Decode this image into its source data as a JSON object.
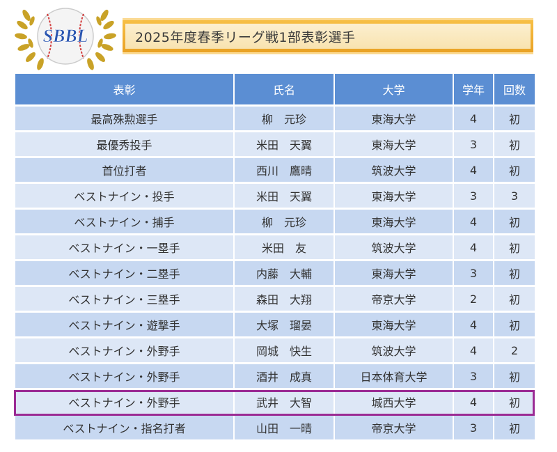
{
  "logo": {
    "text": "SBBL"
  },
  "title": "2025年度春季リーグ戦1部表彰選手",
  "colors": {
    "header": "#5b8ed3",
    "row_odd": "#c7d8f1",
    "row_even": "#dde7f6",
    "highlight": "#9b2b94",
    "title_bar": "#e9a225"
  },
  "table": {
    "headers": [
      "表彰",
      "氏名",
      "大学",
      "学年",
      "回数"
    ],
    "rows": [
      [
        "最高殊勲選手",
        "柳　元珍",
        "東海大学",
        "4",
        "初"
      ],
      [
        "最優秀投手",
        "米田　天翼",
        "東海大学",
        "3",
        "初"
      ],
      [
        "首位打者",
        "西川　鷹晴",
        "筑波大学",
        "4",
        "初"
      ],
      [
        "ベストナイン・投手",
        "米田　天翼",
        "東海大学",
        "3",
        "3"
      ],
      [
        "ベストナイン・捕手",
        "柳　元珍",
        "東海大学",
        "4",
        "初"
      ],
      [
        "ベストナイン・一塁手",
        "米田　友",
        "筑波大学",
        "4",
        "初"
      ],
      [
        "ベストナイン・二塁手",
        "内藤　大輔",
        "東海大学",
        "3",
        "初"
      ],
      [
        "ベストナイン・三塁手",
        "森田　大翔",
        "帝京大学",
        "2",
        "初"
      ],
      [
        "ベストナイン・遊撃手",
        "大塚　瑠晏",
        "東海大学",
        "4",
        "初"
      ],
      [
        "ベストナイン・外野手",
        "岡城　快生",
        "筑波大学",
        "4",
        "2"
      ],
      [
        "ベストナイン・外野手",
        "酒井　成真",
        "日本体育大学",
        "3",
        "初"
      ],
      [
        "ベストナイン・外野手",
        "武井　大智",
        "城西大学",
        "4",
        "初"
      ],
      [
        "ベストナイン・指名打者",
        "山田　一晴",
        "帝京大学",
        "3",
        "初"
      ]
    ],
    "highlighted_row": 11
  }
}
